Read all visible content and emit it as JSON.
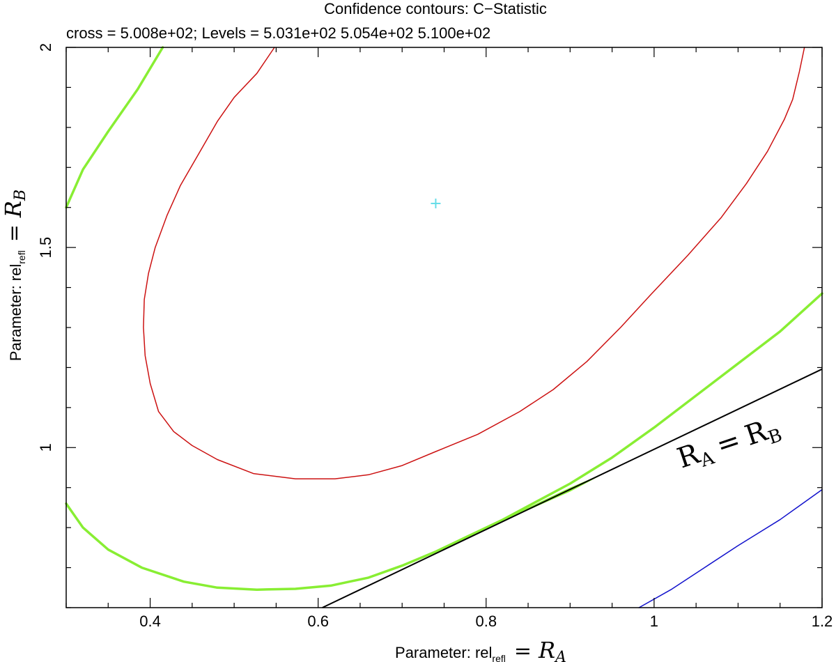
{
  "chart_data": {
    "type": "line",
    "title": "Confidence contours: C−Statistic",
    "subtitle": "cross = 5.008e+02; Levels =  5.031e+02 5.054e+02 5.100e+02",
    "xlabel": {
      "prefix": "Parameter: rel",
      "sub": "refl",
      "math_eq": "=",
      "math_sym": "R",
      "math_sub": "A"
    },
    "ylabel": {
      "prefix": "Parameter: rel",
      "sub": "refl",
      "math_eq": "=",
      "math_sym": "R",
      "math_sub": "B"
    },
    "xlim": [
      0.3,
      1.2
    ],
    "ylim": [
      0.6,
      2.0
    ],
    "x_ticks": [
      {
        "value": 0.4,
        "label": "0.4"
      },
      {
        "value": 0.6,
        "label": "0.6"
      },
      {
        "value": 0.8,
        "label": "0.8"
      },
      {
        "value": 1.0,
        "label": "1"
      },
      {
        "value": 1.2,
        "label": "1.2"
      }
    ],
    "y_ticks": [
      {
        "value": 1.0,
        "label": "1"
      },
      {
        "value": 1.5,
        "label": "1.5"
      },
      {
        "value": 2.0,
        "label": "2"
      }
    ],
    "cross": {
      "x": 0.74,
      "y": 1.61,
      "color": "#66dde8"
    },
    "series": [
      {
        "level": "5.031e+02",
        "color": "#cc1111",
        "points": [
          [
            0.548,
            2.0
          ],
          [
            0.527,
            1.935
          ],
          [
            0.5,
            1.875
          ],
          [
            0.48,
            1.815
          ],
          [
            0.458,
            1.735
          ],
          [
            0.436,
            1.655
          ],
          [
            0.42,
            1.58
          ],
          [
            0.406,
            1.5
          ],
          [
            0.398,
            1.435
          ],
          [
            0.393,
            1.37
          ],
          [
            0.392,
            1.3
          ],
          [
            0.394,
            1.23
          ],
          [
            0.4,
            1.16
          ],
          [
            0.41,
            1.09
          ],
          [
            0.428,
            1.04
          ],
          [
            0.45,
            1.005
          ],
          [
            0.48,
            0.97
          ],
          [
            0.523,
            0.935
          ],
          [
            0.573,
            0.922
          ],
          [
            0.62,
            0.922
          ],
          [
            0.66,
            0.932
          ],
          [
            0.7,
            0.955
          ],
          [
            0.74,
            0.99
          ],
          [
            0.79,
            1.033
          ],
          [
            0.84,
            1.09
          ],
          [
            0.88,
            1.145
          ],
          [
            0.92,
            1.215
          ],
          [
            0.96,
            1.3
          ],
          [
            0.995,
            1.38
          ],
          [
            1.04,
            1.48
          ],
          [
            1.08,
            1.575
          ],
          [
            1.11,
            1.66
          ],
          [
            1.135,
            1.74
          ],
          [
            1.155,
            1.82
          ],
          [
            1.165,
            1.87
          ],
          [
            1.173,
            1.94
          ],
          [
            1.179,
            2.0
          ]
        ]
      },
      {
        "level": "5.054e+02",
        "color": "#88ee33",
        "points": [
          [
            0.3,
            1.6
          ],
          [
            0.32,
            1.695
          ],
          [
            0.35,
            1.79
          ],
          [
            0.385,
            1.895
          ],
          [
            0.415,
            2.0
          ]
        ]
      },
      {
        "level": "5.054e+02",
        "color": "#88ee33",
        "points": [
          [
            0.3,
            0.86
          ],
          [
            0.32,
            0.8
          ],
          [
            0.35,
            0.745
          ],
          [
            0.39,
            0.7
          ],
          [
            0.44,
            0.665
          ],
          [
            0.48,
            0.65
          ],
          [
            0.527,
            0.645
          ],
          [
            0.573,
            0.647
          ],
          [
            0.615,
            0.655
          ],
          [
            0.66,
            0.675
          ],
          [
            0.7,
            0.705
          ],
          [
            0.74,
            0.74
          ],
          [
            0.78,
            0.78
          ],
          [
            0.82,
            0.82
          ],
          [
            0.86,
            0.865
          ],
          [
            0.9,
            0.91
          ],
          [
            0.95,
            0.975
          ],
          [
            1.0,
            1.05
          ],
          [
            1.05,
            1.13
          ],
          [
            1.1,
            1.21
          ],
          [
            1.15,
            1.29
          ],
          [
            1.2,
            1.385
          ]
        ]
      },
      {
        "level": "5.100e+02",
        "color": "#1111cc",
        "points": [
          [
            0.982,
            0.6
          ],
          [
            1.02,
            0.645
          ],
          [
            1.06,
            0.7
          ],
          [
            1.1,
            0.755
          ],
          [
            1.15,
            0.82
          ],
          [
            1.2,
            0.895
          ]
        ]
      }
    ],
    "reference_line": {
      "color": "#000000",
      "points": [
        [
          0.605,
          0.6
        ],
        [
          1.2,
          1.196
        ]
      ],
      "label": {
        "sym": "R",
        "sub_a": "A",
        "eq": "=",
        "sub_b": "B"
      }
    },
    "fill_region": {
      "color": "#88ee33",
      "upper": [
        [
          0.69,
          0.687
        ],
        [
          0.8,
          0.8
        ],
        [
          0.9,
          0.9
        ],
        [
          0.945,
          0.94
        ]
      ],
      "lower": [
        [
          0.945,
          0.94
        ],
        [
          0.9,
          0.89
        ],
        [
          0.86,
          0.853
        ],
        [
          0.82,
          0.815
        ],
        [
          0.78,
          0.775
        ],
        [
          0.74,
          0.738
        ],
        [
          0.69,
          0.687
        ]
      ]
    }
  }
}
